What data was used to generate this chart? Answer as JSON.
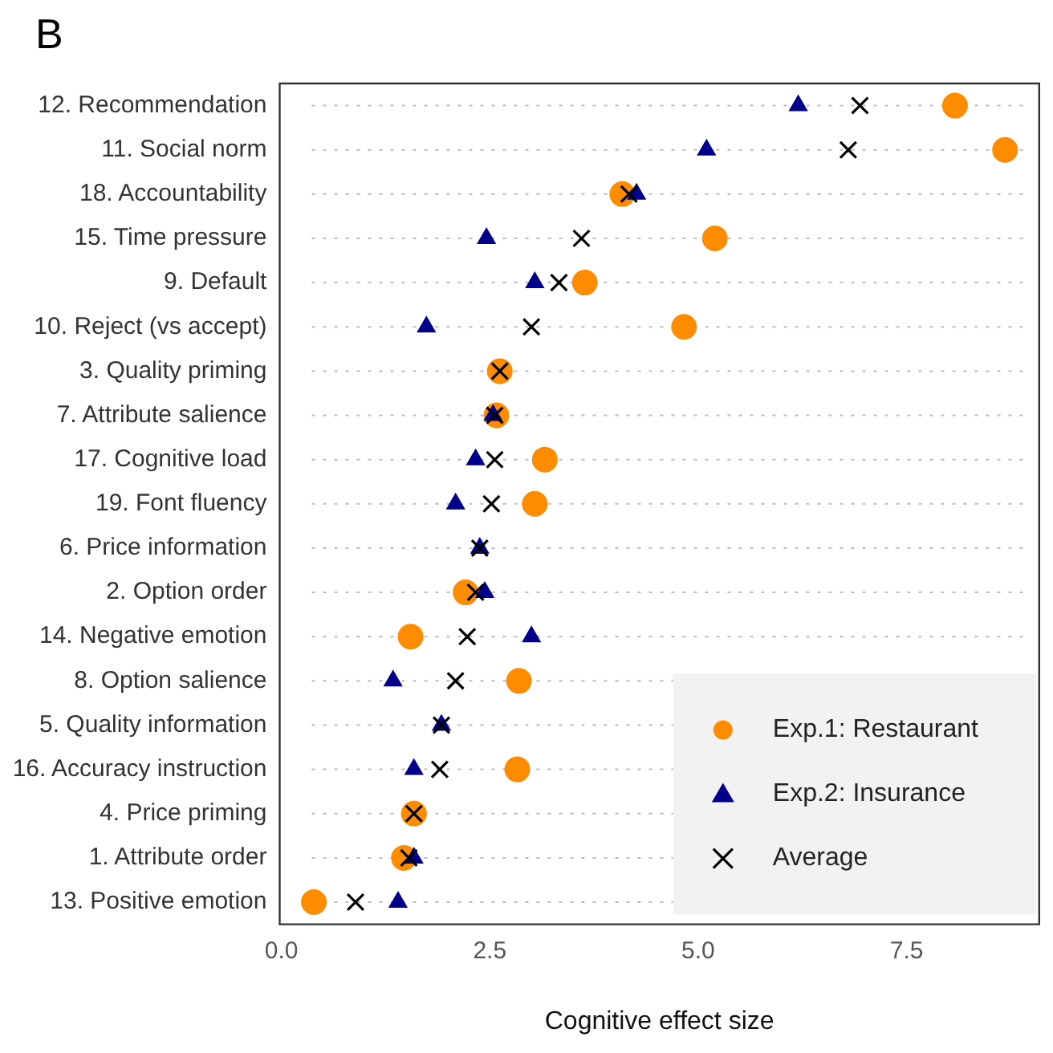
{
  "chart_data": {
    "type": "scatter",
    "title": "B",
    "xlabel": "Cognitive effect size",
    "categories": [
      "12. Recommendation",
      "11. Social norm",
      "18. Accountability",
      "15. Time pressure",
      "9. Default",
      "10. Reject (vs accept)",
      "3. Quality priming",
      "7. Attribute salience",
      "17. Cognitive load",
      "19. Font fluency",
      "6. Price information",
      "2. Option order",
      "14. Negative emotion",
      "8. Option salience",
      "5. Quality information",
      "16. Accuracy instruction",
      "4. Price priming",
      "1. Attribute order",
      "13. Positive emotion"
    ],
    "series": [
      {
        "name": "Exp.1: Restaurant",
        "color": "#ff8c00",
        "marker": "circle",
        "values": [
          8.08,
          8.68,
          4.09,
          5.2,
          3.64,
          4.83,
          2.62,
          2.58,
          3.16,
          3.04,
          null,
          2.21,
          1.55,
          2.85,
          null,
          2.83,
          1.59,
          1.47,
          0.39
        ]
      },
      {
        "name": "Exp.2: Insurance",
        "color": "#00008b",
        "marker": "triangle",
        "values": [
          6.2,
          5.1,
          4.26,
          2.46,
          3.04,
          1.74,
          null,
          2.54,
          2.33,
          2.09,
          2.38,
          2.44,
          3.0,
          1.34,
          1.92,
          1.59,
          null,
          1.59,
          1.4
        ]
      },
      {
        "name": "Average",
        "color": "#000000",
        "marker": "cross",
        "values": [
          6.94,
          6.8,
          4.17,
          3.6,
          3.33,
          3.0,
          2.62,
          2.56,
          2.56,
          2.52,
          2.38,
          2.33,
          2.23,
          2.09,
          1.92,
          1.9,
          1.59,
          1.53,
          0.89
        ]
      }
    ],
    "xlim": [
      -0.02,
      9.09
    ],
    "xticks": [
      {
        "value": 0,
        "label": "0.0"
      },
      {
        "value": 2.5,
        "label": "2.5"
      },
      {
        "value": 5,
        "label": "5.0"
      },
      {
        "value": 7.5,
        "label": "7.5"
      }
    ],
    "orientation": "horizontal",
    "grid": "y",
    "legend": "bottom right"
  }
}
